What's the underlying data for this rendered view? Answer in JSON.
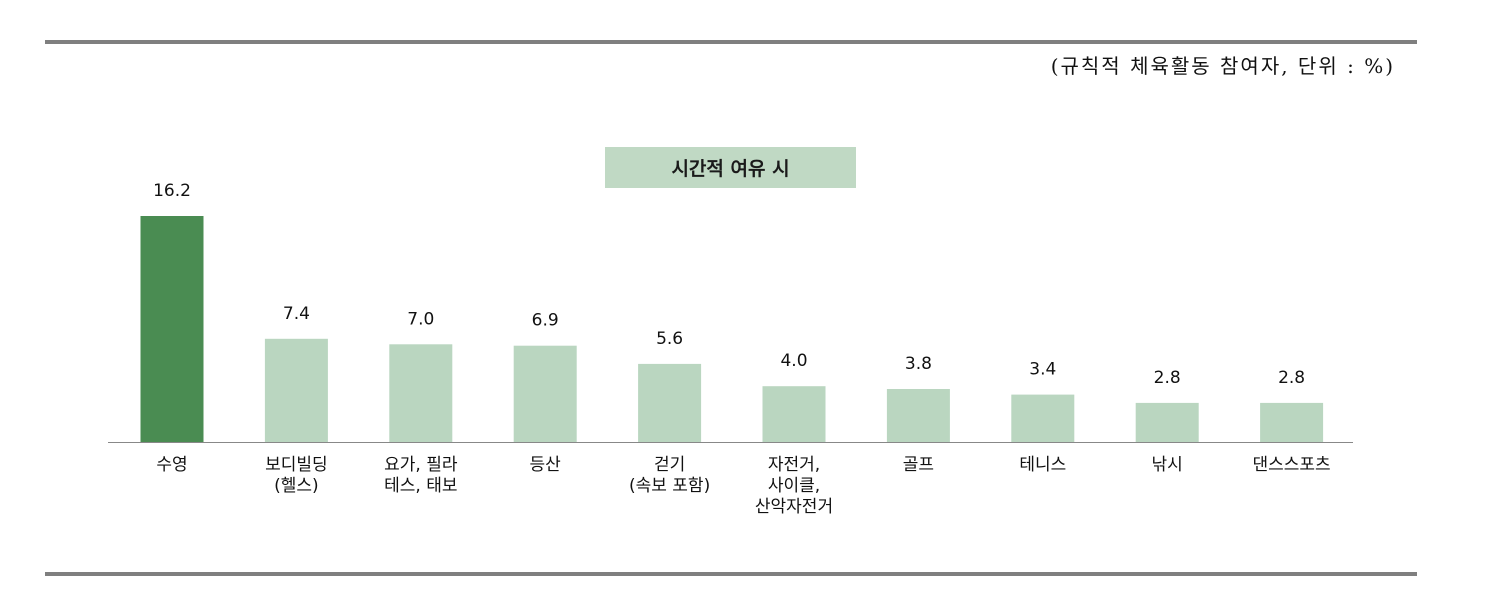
{
  "unit_note": "(규칙적 체육활동 참여자, 단위 : %)",
  "colors": {
    "highlight_bar": "#4a8c52",
    "bar": "#bad6c0",
    "title_box": "#c0d9c4",
    "axis": "#888888",
    "rule": "#7f7f7f"
  },
  "chart_data": {
    "type": "bar",
    "title": "시간적 여유 시",
    "xlabel": "",
    "ylabel": "",
    "ylim": [
      0,
      18
    ],
    "grid": false,
    "legend": "none",
    "highlight_index": 0,
    "categories": [
      [
        "수영"
      ],
      [
        "보디빌딩",
        "(헬스)"
      ],
      [
        "요가, 필라",
        "테스, 태보"
      ],
      [
        "등산"
      ],
      [
        "걷기",
        "(속보 포함)"
      ],
      [
        "자전거,",
        "사이클,",
        "산악자전거"
      ],
      [
        "골프"
      ],
      [
        "테니스"
      ],
      [
        "낚시"
      ],
      [
        "댄스스포츠"
      ]
    ],
    "values": [
      16.2,
      7.4,
      7.0,
      6.9,
      5.6,
      4.0,
      3.8,
      3.4,
      2.8,
      2.8
    ],
    "value_labels": [
      "16.2",
      "7.4",
      "7.0",
      "6.9",
      "5.6",
      "4.0",
      "3.8",
      "3.4",
      "2.8",
      "2.8"
    ]
  }
}
